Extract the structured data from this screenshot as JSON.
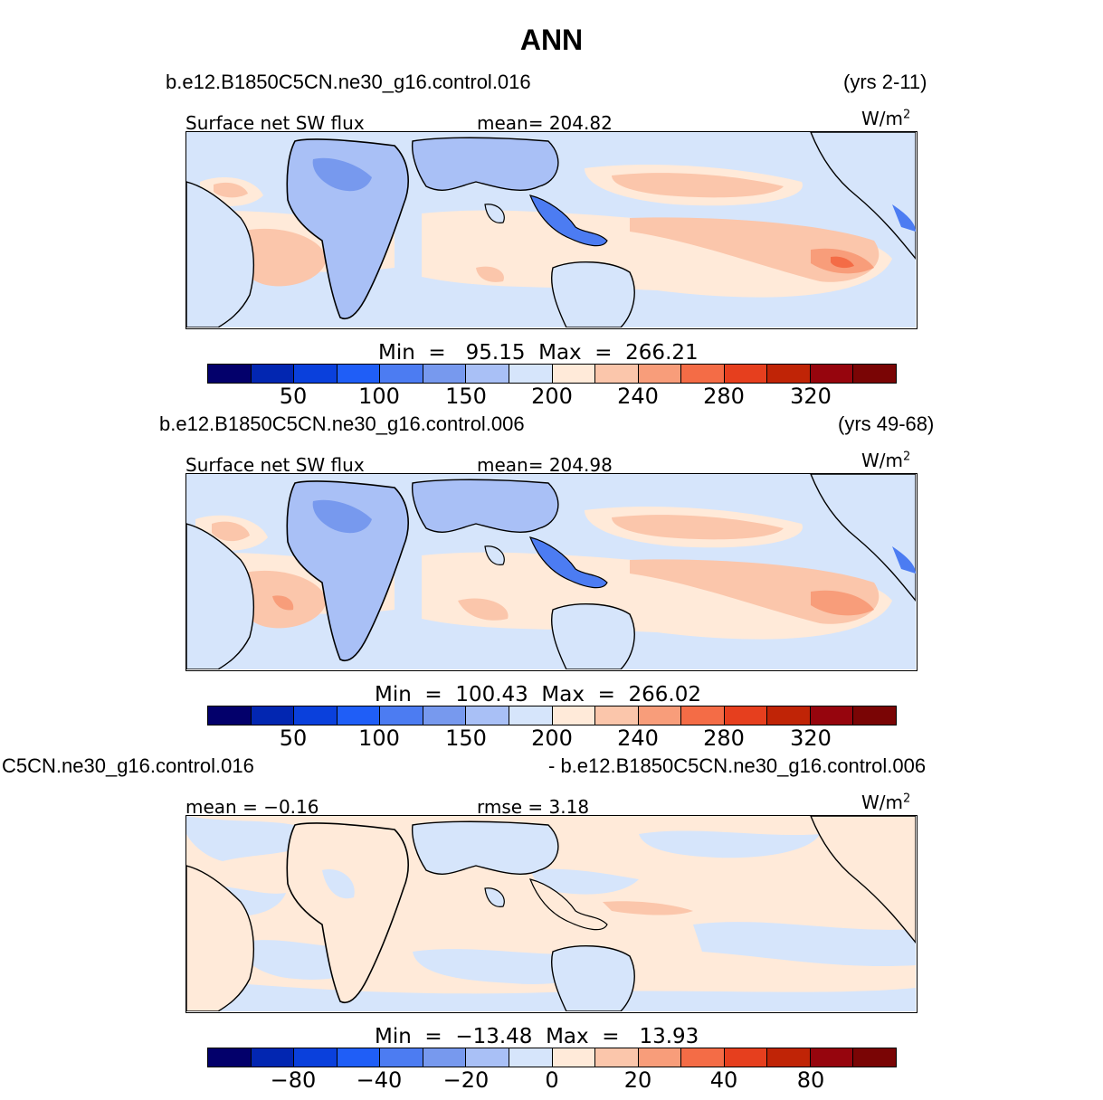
{
  "title": "ANN",
  "colorbar": {
    "colors": [
      "#03006b",
      "#0226b1",
      "#0a40dc",
      "#1f5ef7",
      "#4c7cf2",
      "#7799ee",
      "#a9c0f6",
      "#d6e5fb",
      "#ffead9",
      "#fbc6ab",
      "#f89d7a",
      "#f46c46",
      "#e63f1e",
      "#c02406",
      "#96050d"
    ]
  },
  "panels": [
    {
      "case_name": "b.e12.B1850C5CN.ne30_g16.control.016",
      "years": "(yrs 2-11)",
      "variable": "Surface net SW flux",
      "stat": "mean=  204.82",
      "units": "W/m",
      "units_sup": "2",
      "minmax": "Min  =   95.15  Max  =  266.21",
      "tick_labels": [
        "50",
        "100",
        "150",
        "200",
        "240",
        "280",
        "320"
      ]
    },
    {
      "case_name": "b.e12.B1850C5CN.ne30_g16.control.006",
      "years": "(yrs 49-68)",
      "variable": "Surface net SW flux",
      "stat": "mean=  204.98",
      "units": "W/m",
      "units_sup": "2",
      "minmax": "Min  =  100.43  Max  =  266.02",
      "tick_labels": [
        "50",
        "100",
        "150",
        "200",
        "240",
        "280",
        "320"
      ]
    },
    {
      "case_name": "C5CN.ne30_g16.control.016",
      "years": "- b.e12.B1850C5CN.ne30_g16.control.006",
      "variable": "mean =   −0.16",
      "stat": "rmse =    3.18",
      "units": "W/m",
      "units_sup": "2",
      "minmax": "Min  =  −13.48  Max  =   13.93",
      "tick_labels": [
        "−80",
        "−40",
        "−20",
        "0",
        "20",
        "40",
        "80"
      ]
    }
  ]
}
